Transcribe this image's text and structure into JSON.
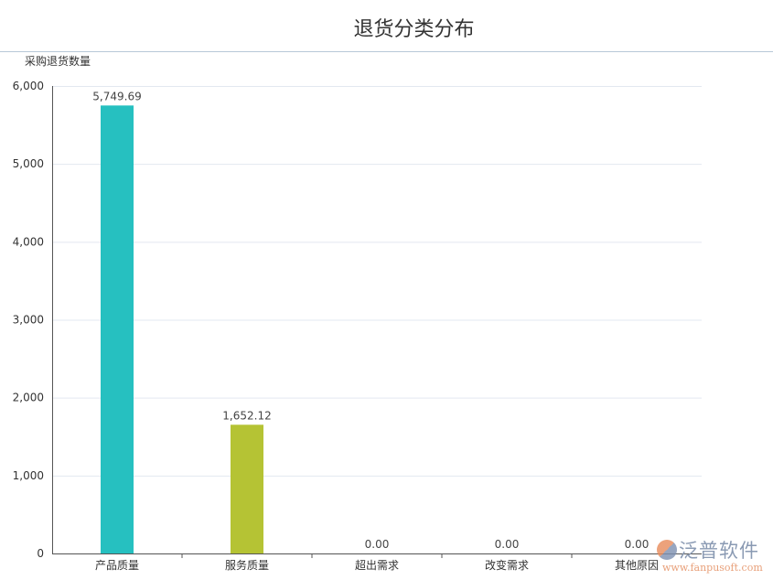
{
  "chart_data": {
    "type": "bar",
    "title": "退货分类分布",
    "ylabel": "采购退货数量",
    "xlabel": "",
    "categories": [
      "产品质量",
      "服务质量",
      "超出需求",
      "改变需求",
      "其他原因"
    ],
    "values": [
      5749.69,
      1652.12,
      0,
      0,
      0
    ],
    "data_labels": [
      "5,749.69",
      "1,652.12",
      "0.00",
      "0.00",
      "0.00"
    ],
    "colors": [
      "#26c0c0",
      "#b5c334",
      "#26c0c0",
      "#26c0c0",
      "#26c0c0"
    ],
    "ylim": [
      0,
      6000
    ],
    "yticks": [
      0,
      1000,
      2000,
      3000,
      4000,
      5000,
      6000
    ],
    "ytick_labels": [
      "0",
      "1,000",
      "2,000",
      "3,000",
      "4,000",
      "5,000",
      "6,000"
    ],
    "grid": true,
    "legend": "none"
  },
  "watermark": {
    "brand": "泛普软件",
    "url": "www.fanpusoft.com"
  }
}
